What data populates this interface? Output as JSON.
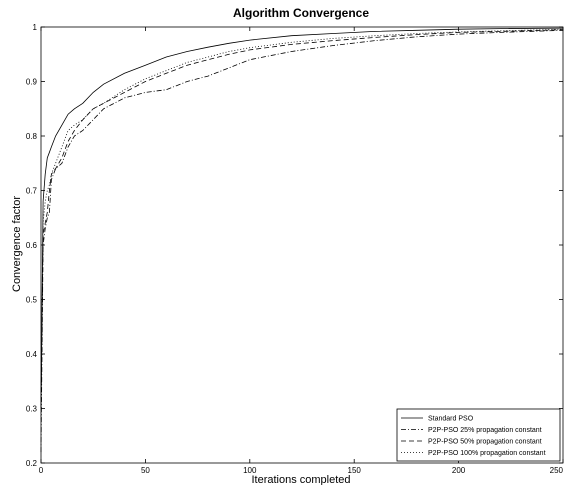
{
  "chart_data": {
    "type": "line",
    "title": "Algorithm Convergence",
    "xlabel": "Iterations completed",
    "ylabel": "Convergence factor",
    "xlim": [
      0,
      250
    ],
    "ylim": [
      0.2,
      1
    ],
    "xticks": [
      0,
      50,
      100,
      150,
      200,
      250
    ],
    "yticks": [
      0.2,
      0.3,
      0.4,
      0.5,
      0.6,
      0.7,
      0.8,
      0.9,
      1
    ],
    "xtick_labels": [
      "0",
      "50",
      "100",
      "150",
      "200",
      "250"
    ],
    "ytick_labels": [
      "0.2",
      "0.3",
      "0.4",
      "0.5",
      "0.6",
      "0.7",
      "0.8",
      "0.9",
      "1"
    ],
    "grid": false,
    "legend_position": "bottom-right",
    "series": [
      {
        "name": "Standard PSO",
        "style": "solid",
        "x": [
          0,
          1,
          2,
          3,
          4,
          5,
          7,
          10,
          13,
          16,
          20,
          25,
          30,
          40,
          50,
          60,
          70,
          80,
          90,
          100,
          120,
          140,
          160,
          180,
          200,
          220,
          250
        ],
        "y": [
          0.3,
          0.68,
          0.73,
          0.76,
          0.77,
          0.78,
          0.8,
          0.82,
          0.84,
          0.85,
          0.86,
          0.88,
          0.895,
          0.915,
          0.93,
          0.945,
          0.955,
          0.963,
          0.97,
          0.976,
          0.984,
          0.988,
          0.992,
          0.994,
          0.996,
          0.997,
          0.998
        ]
      },
      {
        "name": "P2P-PSO 25% propagation constant",
        "style": "dashdot",
        "x": [
          0,
          1,
          2,
          3,
          4,
          5,
          7,
          10,
          13,
          16,
          20,
          25,
          30,
          40,
          50,
          60,
          70,
          80,
          90,
          100,
          120,
          140,
          160,
          180,
          200,
          220,
          250
        ],
        "y": [
          0.22,
          0.6,
          0.63,
          0.65,
          0.66,
          0.72,
          0.74,
          0.75,
          0.78,
          0.8,
          0.81,
          0.83,
          0.85,
          0.87,
          0.88,
          0.885,
          0.9,
          0.91,
          0.925,
          0.94,
          0.955,
          0.966,
          0.975,
          0.982,
          0.987,
          0.99,
          0.994
        ]
      },
      {
        "name": "P2P-PSO 50% propagation constant",
        "style": "dashed",
        "x": [
          0,
          1,
          2,
          3,
          4,
          5,
          7,
          10,
          13,
          16,
          20,
          25,
          30,
          40,
          50,
          60,
          70,
          80,
          90,
          100,
          120,
          140,
          160,
          180,
          200,
          220,
          250
        ],
        "y": [
          0.3,
          0.62,
          0.64,
          0.66,
          0.7,
          0.73,
          0.74,
          0.76,
          0.79,
          0.81,
          0.83,
          0.85,
          0.86,
          0.88,
          0.9,
          0.915,
          0.93,
          0.94,
          0.95,
          0.958,
          0.968,
          0.975,
          0.981,
          0.986,
          0.99,
          0.992,
          0.995
        ]
      },
      {
        "name": "P2P-PSO 100% propagation constant",
        "style": "dotted",
        "x": [
          0,
          1,
          2,
          3,
          4,
          5,
          7,
          10,
          13,
          16,
          20,
          25,
          30,
          40,
          50,
          60,
          70,
          80,
          90,
          100,
          120,
          140,
          160,
          180,
          200,
          220,
          250
        ],
        "y": [
          0.28,
          0.64,
          0.68,
          0.7,
          0.71,
          0.73,
          0.75,
          0.78,
          0.81,
          0.82,
          0.83,
          0.85,
          0.86,
          0.885,
          0.905,
          0.92,
          0.935,
          0.945,
          0.955,
          0.962,
          0.972,
          0.979,
          0.984,
          0.988,
          0.991,
          0.993,
          0.996
        ]
      }
    ]
  }
}
